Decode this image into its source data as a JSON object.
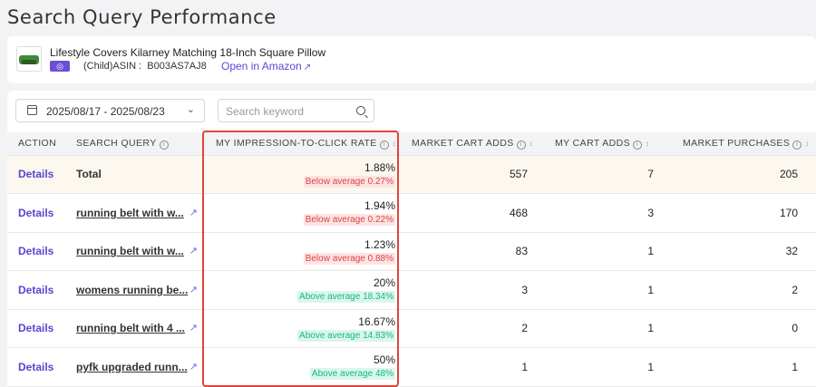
{
  "page": {
    "title": "Search Query Performance"
  },
  "product": {
    "name": "Lifestyle Covers Kilarney Matching 18-Inch Square Pillow",
    "asin_label": "(Child)ASIN :  B003AS7AJ8",
    "amazon_link": "Open in Amazon",
    "marketplace_icon": "globe-icon"
  },
  "filters": {
    "date_range": "2025/08/17 - 2025/08/23",
    "search_placeholder": "Search keyword"
  },
  "table": {
    "columns": {
      "action": "ACTION",
      "query": "SEARCH QUERY",
      "rate": "MY IMPRESSION-TO-CLICK RATE",
      "market_cart": "MARKET CART ADDS",
      "my_cart": "MY CART ADDS",
      "market_purchases": "MARKET PURCHASES"
    },
    "rows": [
      {
        "action": "Details",
        "query": "Total",
        "rate": "1.88%",
        "badge": "Below average 0.27%",
        "market_cart": "557",
        "my_cart": "7",
        "market_purchases": "205"
      },
      {
        "action": "Details",
        "query": "running belt with w...",
        "rate": "1.94%",
        "badge": "Below average 0.22%",
        "market_cart": "468",
        "my_cart": "3",
        "market_purchases": "170"
      },
      {
        "action": "Details",
        "query": "running belt with w...",
        "rate": "1.23%",
        "badge": "Below average 0.88%",
        "market_cart": "83",
        "my_cart": "1",
        "market_purchases": "32"
      },
      {
        "action": "Details",
        "query": "womens running be...",
        "rate": "20%",
        "badge": "Above average 18.34%",
        "market_cart": "3",
        "my_cart": "1",
        "market_purchases": "2"
      },
      {
        "action": "Details",
        "query": "running belt with 4 ...",
        "rate": "16.67%",
        "badge": "Above average 14.83%",
        "market_cart": "2",
        "my_cart": "1",
        "market_purchases": "0"
      },
      {
        "action": "Details",
        "query": "pyfk upgraded runn...",
        "rate": "50%",
        "badge": "Above average 48%",
        "market_cart": "1",
        "my_cart": "1",
        "market_purchases": "1"
      }
    ]
  },
  "colors": {
    "accent": "#5746d0",
    "below": "#e04141",
    "above": "#14b886",
    "highlight": "#e0443a"
  }
}
